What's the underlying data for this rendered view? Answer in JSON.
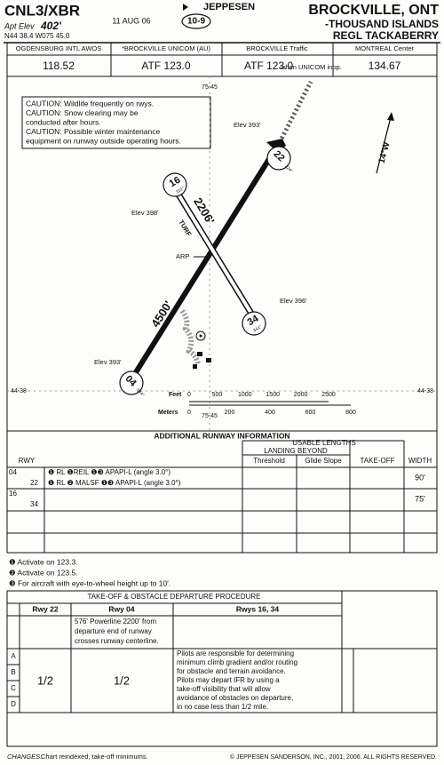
{
  "header": {
    "ident": "CNL3/XBR",
    "elev_label": "Apt Elev",
    "elev": "402'",
    "coords": "N44 38.4 W075 45.0",
    "date": "11 AUG 06",
    "index": "10-9",
    "brand": "JEPPESEN",
    "city": "BROCKVILLE, ONT",
    "name_1": "-THOUSAND ISLANDS",
    "name_2": "REGL TACKABERRY"
  },
  "comms": [
    {
      "label": "OGDENSBURG INTL AWOS",
      "freq": "118.52"
    },
    {
      "label": "*BROCKVILLE UNICOM (AU)",
      "freq": "ATF 123.0"
    },
    {
      "label": "BROCKVILLE Traffic",
      "freq": "ATF 123.0",
      "note": "when UNICOM inop."
    },
    {
      "label": "MONTREAL Center",
      "freq": "134.67"
    }
  ],
  "diagram": {
    "grid": {
      "top": "75-45",
      "bottom": "75-45",
      "left": "44-38",
      "right": "44-38"
    },
    "cautions": [
      "CAUTION: Wildlife frequently on rwys.",
      "CAUTION: Snow clearing may be",
      "conducted after hours.",
      "CAUTION: Possible winter maintenance",
      "equipment on runway outside operating hours."
    ],
    "variation": "14°W",
    "runway_ends": {
      "r22": "22",
      "r22_hdg": "224°",
      "r16": "16",
      "r16_hdg": "161°",
      "r34": "34",
      "r34_hdg": "341°",
      "r04": "04",
      "r04_hdg": "044°"
    },
    "elevations": [
      "Elev 393'",
      "Elev 398'",
      "Elev 396'",
      "Elev 393'"
    ],
    "turf": "TURF",
    "length_16_34": "2206'",
    "length_04_22": "4500'",
    "arp": "ARP",
    "scale": {
      "feet_label": "Feet",
      "feet": [
        "0",
        "500",
        "1000",
        "1500",
        "2000",
        "2500"
      ],
      "meters_label": "Meters",
      "meters": [
        "0",
        "200",
        "400",
        "600",
        "800"
      ]
    }
  },
  "runway_info": {
    "title": "ADDITIONAL RUNWAY INFORMATION",
    "usable_lengths": "USABLE LENGTHS",
    "landing_beyond": "LANDING BEYOND",
    "columns": {
      "rwy": "RWY",
      "threshold": "Threshold",
      "glide_slope": "Glide Slope",
      "takeoff": "TAKE-OFF",
      "width": "WIDTH"
    },
    "rows": [
      {
        "rwy": "04",
        "lighting": "❶ RL ❶REIL ❶❸ APAPI-L (angle 3.0°)",
        "width": "90'"
      },
      {
        "rwy": "22",
        "lighting": "❶ RL ❷ MALSF ❶❸ APAPI-L (angle 3.0°)"
      },
      {
        "rwy": "16",
        "width": "75'"
      },
      {
        "rwy": "34"
      }
    ]
  },
  "notes": [
    "❶ Activate on 123.3.",
    "❷ Activate on 123.5.",
    "❸ For aircraft with eye-to-wheel height up to 10'."
  ],
  "takeoff": {
    "title": "TAKE-OFF & OBSTACLE DEPARTURE PROCEDURE",
    "rwy_22": "Rwy 22",
    "rwy_04": "Rwy 04",
    "rwys_16_34": "Rwys 16, 34",
    "powerline": [
      "576' Powerline 2200' from",
      "departure end of runway",
      "crosses runway centerline."
    ],
    "procedure": [
      "Pilots are responsible for determining",
      "minimum climb gradient and/or routing",
      "for obstacle and terrain avoidance.",
      "Pilots may depart IFR by using a",
      "take-off visibility that will allow",
      "avoidance of obstacles on departure,",
      "in no case less than 1/2 mile."
    ],
    "rows": [
      "A",
      "B",
      "C",
      "D"
    ],
    "min_22": "1/2",
    "min_04": "1/2"
  },
  "footer": {
    "changes_label": "CHANGES:",
    "changes": "Chart reindexed, take-off minimums.",
    "copyright": "© JEPPESEN SANDERSON, INC., 2001, 2006. ALL RIGHTS RESERVED."
  }
}
